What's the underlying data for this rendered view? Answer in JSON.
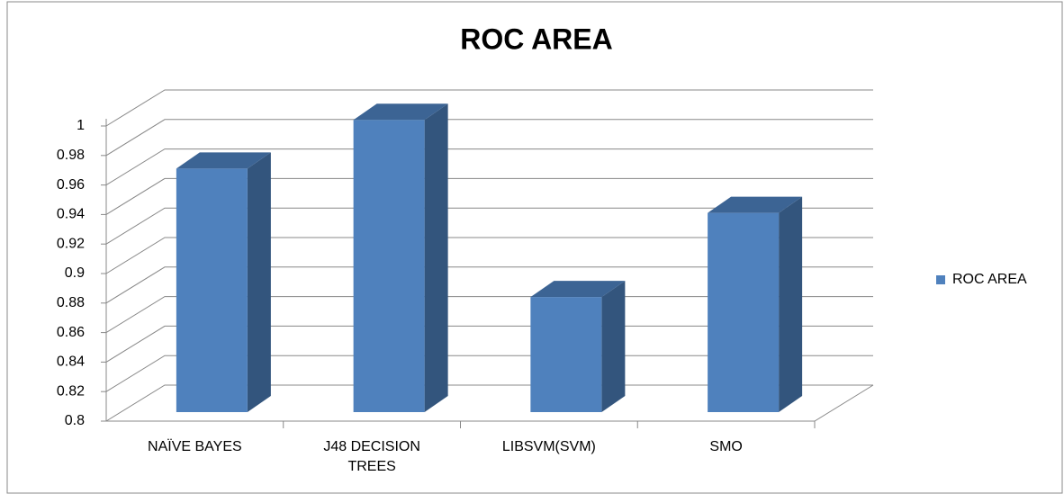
{
  "chart_data": {
    "type": "bar3d",
    "title": "ROC AREA",
    "categories": [
      "NAÏVE BAYES",
      "J48 DECISION TREES",
      "LIBSVM(SVM)",
      "SMO"
    ],
    "series": [
      {
        "name": "ROC AREA",
        "color": "#4f81bd",
        "values": [
          0.965,
          0.998,
          0.878,
          0.935
        ]
      }
    ],
    "ylim": [
      0.8,
      1
    ],
    "yticks": [
      0.8,
      0.82,
      0.84,
      0.86,
      0.88,
      0.9,
      0.92,
      0.94,
      0.96,
      0.98,
      1
    ],
    "grid": true,
    "legend": "right"
  }
}
